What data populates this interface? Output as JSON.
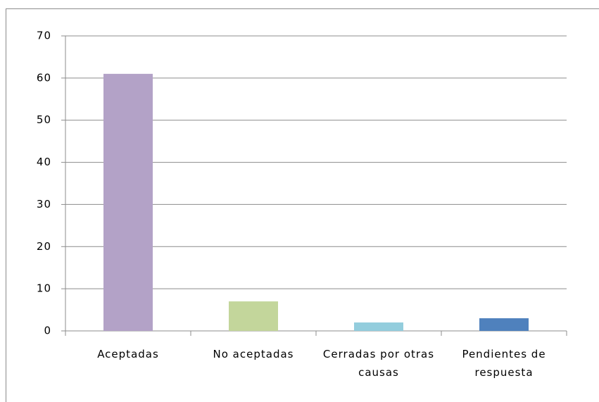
{
  "chart_data": {
    "type": "bar",
    "categories": [
      "Aceptadas",
      "No aceptadas",
      "Cerradas por otras causas",
      "Pendientes de respuesta"
    ],
    "values": [
      61,
      7,
      2,
      3
    ],
    "colors": [
      "#b3a2c7",
      "#c3d69b",
      "#93cddd",
      "#4f81bd"
    ],
    "ylim": [
      0,
      70
    ],
    "yticks": [
      0,
      10,
      20,
      30,
      40,
      50,
      60,
      70
    ],
    "grid": true
  }
}
